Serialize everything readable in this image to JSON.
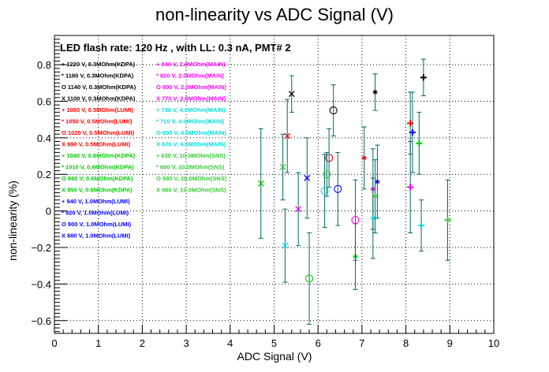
{
  "chart_data": {
    "type": "scatter",
    "title": "non-linearity vs ADC Signal (V)",
    "subtitle": "LED flash rate: 120 Hz , with LL: 0.3 nA, PMT# 2",
    "xlabel": "ADC Signal (V)",
    "ylabel": "non-linearity (%)",
    "xlim": [
      0,
      10
    ],
    "ylim": [
      -0.67,
      0.96
    ],
    "x_ticks": [
      0,
      1,
      2,
      3,
      4,
      5,
      6,
      7,
      8,
      9,
      10
    ],
    "y_ticks": [
      -0.6,
      -0.4,
      -0.2,
      0,
      0.2,
      0.4,
      0.6,
      0.8
    ],
    "grid": "dotted",
    "legend_position": "top-left",
    "series": [
      {
        "name": "1220 V, 0.3MOhm(KDPA)",
        "color": "#000000",
        "marker": "plus",
        "points": [
          {
            "x": 8.4,
            "y": 0.73,
            "err": 0.1
          }
        ]
      },
      {
        "name": "1180 V, 0.3MOhm(KDPA)",
        "color": "#000000",
        "marker": "star",
        "points": [
          {
            "x": 7.3,
            "y": 0.65,
            "err": 0.1
          }
        ]
      },
      {
        "name": "1140 V, 0.3MOhm(KDPA)",
        "color": "#000000",
        "marker": "circle",
        "points": [
          {
            "x": 6.35,
            "y": 0.55,
            "err": 0.14
          }
        ]
      },
      {
        "name": "1100 V, 0.3MOhm(KDPA)",
        "color": "#000000",
        "marker": "x",
        "points": [
          {
            "x": 5.4,
            "y": 0.64,
            "err": 0.1
          }
        ]
      },
      {
        "name": "1080 V, 0.5MOhm(LUMI)",
        "color": "#ff0000",
        "marker": "plus",
        "points": [
          {
            "x": 8.1,
            "y": 0.48,
            "err": 0.17
          }
        ]
      },
      {
        "name": "1050 V, 0.5MOhm(LUMI)",
        "color": "#ff0000",
        "marker": "star",
        "points": [
          {
            "x": 7.05,
            "y": 0.29,
            "err": 0.17
          }
        ]
      },
      {
        "name": "1020 V, 0.5MOhm(LUMI)",
        "color": "#ff0000",
        "marker": "circle",
        "points": [
          {
            "x": 6.25,
            "y": 0.29,
            "err": 0.16
          }
        ]
      },
      {
        "name": "990 V, 0.5MOhm(LUMI)",
        "color": "#ff0000",
        "marker": "x",
        "points": [
          {
            "x": 5.3,
            "y": 0.41,
            "err": 0.2
          }
        ]
      },
      {
        "name": "1040 V, 0.6MOhm(KDPA)",
        "color": "#00cc00",
        "marker": "plus",
        "points": [
          {
            "x": 8.3,
            "y": 0.37,
            "err": 0.17
          }
        ]
      },
      {
        "name": "1010 V, 0.6MOhm(KDPA)",
        "color": "#00cc00",
        "marker": "star",
        "points": [
          {
            "x": 6.85,
            "y": -0.25,
            "err": 0.18
          }
        ]
      },
      {
        "name": "980 V, 0.6MOhm(KDPA)",
        "color": "#00cc00",
        "marker": "circle",
        "points": [
          {
            "x": 5.8,
            "y": -0.37,
            "err": 0.25
          }
        ]
      },
      {
        "name": "950 V, 0.6MOhm(KDPA)",
        "color": "#00cc00",
        "marker": "x",
        "points": [
          {
            "x": 4.7,
            "y": 0.15,
            "err": 0.3
          }
        ]
      },
      {
        "name": "940 V, 1.0MOhm(LUMI)",
        "color": "#0000ff",
        "marker": "plus",
        "points": [
          {
            "x": 8.15,
            "y": 0.43,
            "err": 0.22
          }
        ]
      },
      {
        "name": "920 V, 1.0MOhm(LUMI)",
        "color": "#0000ff",
        "marker": "star",
        "points": [
          {
            "x": 7.35,
            "y": 0.16,
            "err": 0.2
          }
        ]
      },
      {
        "name": "900 V, 1.0MOhm(LUMI)",
        "color": "#0000ff",
        "marker": "circle",
        "points": [
          {
            "x": 6.45,
            "y": 0.12,
            "err": 0.2
          }
        ]
      },
      {
        "name": "880 V, 1.0MOhm(LUMI)",
        "color": "#0000ff",
        "marker": "x",
        "points": [
          {
            "x": 5.75,
            "y": 0.18,
            "err": 0.22
          }
        ]
      },
      {
        "name": "840 V, 2.0MOhm(MAIN)",
        "color": "#ff00ff",
        "marker": "plus",
        "points": [
          {
            "x": 8.1,
            "y": 0.13,
            "err": 0.25
          }
        ]
      },
      {
        "name": "820 V, 2.0MOhm(MAIN)",
        "color": "#ff00ff",
        "marker": "star",
        "points": [
          {
            "x": 7.25,
            "y": 0.12,
            "err": 0.22
          }
        ]
      },
      {
        "name": "800 V, 2.0MOhm(MAIN)",
        "color": "#ff00ff",
        "marker": "circle",
        "points": [
          {
            "x": 6.85,
            "y": -0.05,
            "err": 0.22
          }
        ]
      },
      {
        "name": "770 V, 2.0MOhm(MAIN)",
        "color": "#ff00ff",
        "marker": "x",
        "points": [
          {
            "x": 5.55,
            "y": 0.01,
            "err": 0.2
          }
        ]
      },
      {
        "name": "730 V, 4.0MOhm(MAIN)",
        "color": "#00dddd",
        "marker": "plus",
        "points": [
          {
            "x": 8.35,
            "y": -0.08,
            "err": 0.14
          }
        ]
      },
      {
        "name": "710 V, 4.0MOhm(MAIN)",
        "color": "#00dddd",
        "marker": "star",
        "points": [
          {
            "x": 7.25,
            "y": -0.04,
            "err": 0.22
          }
        ]
      },
      {
        "name": "690 V, 4.0MOhm(MAIN)",
        "color": "#00dddd",
        "marker": "circle",
        "points": [
          {
            "x": 6.15,
            "y": 0.11,
            "err": 0.2
          }
        ]
      },
      {
        "name": "670 V, 4.0MOhm(MAIN)",
        "color": "#00dddd",
        "marker": "x",
        "points": [
          {
            "x": 5.25,
            "y": -0.19,
            "err": 0.2
          }
        ]
      },
      {
        "name": "630 V, 10.0MOhm(SNS)",
        "color": "#33cc33",
        "marker": "plus",
        "points": [
          {
            "x": 8.95,
            "y": -0.05,
            "err": 0.22
          }
        ]
      },
      {
        "name": "600 V, 10.0MOhm(SNS)",
        "color": "#33cc33",
        "marker": "star",
        "points": [
          {
            "x": 7.3,
            "y": 0.08,
            "err": 0.2
          }
        ]
      },
      {
        "name": "580 V, 10.0MOhm(SNS)",
        "color": "#33cc33",
        "marker": "circle",
        "points": [
          {
            "x": 6.2,
            "y": 0.2,
            "err": 0.12
          }
        ]
      },
      {
        "name": "560 V, 10.0MOhm(SNS)",
        "color": "#33cc33",
        "marker": "x",
        "points": [
          {
            "x": 5.2,
            "y": 0.24,
            "err": 0.18
          }
        ]
      }
    ],
    "legend_columns": [
      {
        "items": [
          0,
          1,
          2,
          3,
          4,
          5,
          6,
          7,
          8,
          9,
          10,
          11,
          12,
          13,
          14,
          15
        ],
        "prefixes": [
          "+",
          "*",
          "O",
          "X",
          "+",
          "*",
          "O",
          "X",
          "+",
          "*",
          "O",
          "X",
          "+",
          "*",
          "O",
          "X"
        ]
      },
      {
        "items": [
          16,
          17,
          18,
          19,
          20,
          21,
          22,
          23,
          24,
          25,
          26,
          27
        ],
        "prefixes": [
          "+",
          "*",
          "O",
          "X",
          "+",
          "*",
          "O",
          "X",
          "+",
          "*",
          "O",
          "X"
        ]
      }
    ]
  }
}
